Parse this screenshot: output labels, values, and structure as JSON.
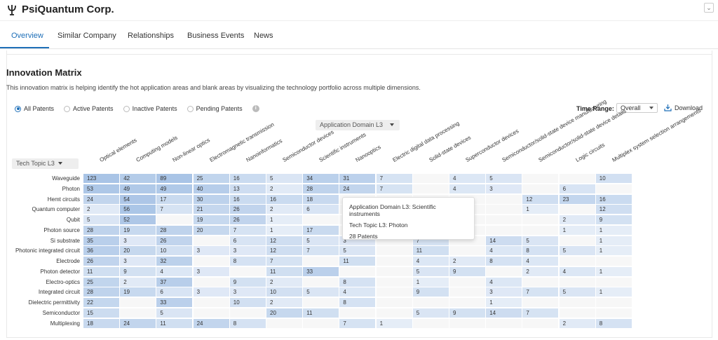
{
  "header": {
    "company": "PsiQuantum Corp."
  },
  "tabs": [
    "Overview",
    "Similar Company",
    "Relationships",
    "Business Events",
    "News"
  ],
  "section": {
    "title": "Innovation Matrix",
    "description": "This innovation matrix is helping identify the hot application areas and blank areas by visualizing the technology portfolio across multiple dimensions."
  },
  "filters": {
    "radios": [
      "All Patents",
      "Active Patents",
      "Inactive Patents",
      "Pending Patents"
    ],
    "selected": "All Patents",
    "time_range_label": "Time Range:",
    "time_range_value": "Overall",
    "download_label": "Download"
  },
  "matrix": {
    "x_axis_selector": "Application Domain L3",
    "y_axis_selector": "Tech Topic L3",
    "columns": [
      "Optical elements",
      "Computing models",
      "Non-linear optics",
      "Electromagnetic transmission",
      "Nanoinformatics",
      "Semiconductor devices",
      "Scientific instruments",
      "Nanooptics",
      "Electric digital data processing",
      "Solid-state devices",
      "Superconductor devices",
      "Semiconductor/solid-state device manufacturing",
      "Semiconductor/solid-state device details",
      "Logic circuits",
      "Multiplex system selection arrangements"
    ],
    "rows": [
      {
        "label": "Waveguide",
        "values": [
          123,
          42,
          89,
          25,
          16,
          5,
          34,
          31,
          7,
          null,
          4,
          5,
          null,
          null,
          10
        ]
      },
      {
        "label": "Photon",
        "values": [
          53,
          49,
          49,
          40,
          13,
          2,
          28,
          24,
          7,
          null,
          4,
          3,
          null,
          6,
          null
        ]
      },
      {
        "label": "Hemt circuits",
        "values": [
          24,
          54,
          17,
          30,
          16,
          16,
          18,
          null,
          null,
          null,
          null,
          null,
          12,
          23,
          16
        ]
      },
      {
        "label": "Quantum computer",
        "values": [
          2,
          56,
          7,
          21,
          26,
          2,
          6,
          null,
          null,
          null,
          null,
          null,
          1,
          null,
          12
        ]
      },
      {
        "label": "Qubit",
        "values": [
          5,
          52,
          null,
          19,
          26,
          1,
          null,
          null,
          null,
          null,
          null,
          null,
          null,
          2,
          9
        ]
      },
      {
        "label": "Photon source",
        "values": [
          28,
          19,
          28,
          20,
          7,
          1,
          17,
          null,
          null,
          null,
          null,
          null,
          null,
          1,
          1
        ]
      },
      {
        "label": "Si substrate",
        "values": [
          35,
          3,
          26,
          null,
          6,
          12,
          5,
          3,
          null,
          7,
          null,
          14,
          5,
          null,
          1
        ]
      },
      {
        "label": "Photonic integrated circuit",
        "values": [
          36,
          20,
          10,
          3,
          3,
          12,
          7,
          5,
          null,
          11,
          null,
          4,
          8,
          5,
          1
        ]
      },
      {
        "label": "Electrode",
        "values": [
          26,
          3,
          32,
          null,
          8,
          7,
          null,
          11,
          null,
          4,
          2,
          8,
          4,
          null,
          null
        ]
      },
      {
        "label": "Photon detector",
        "values": [
          11,
          9,
          4,
          3,
          null,
          11,
          33,
          null,
          null,
          5,
          9,
          null,
          2,
          4,
          1
        ]
      },
      {
        "label": "Electro-optics",
        "values": [
          25,
          2,
          37,
          null,
          9,
          2,
          null,
          8,
          null,
          1,
          null,
          4,
          null,
          null,
          null
        ]
      },
      {
        "label": "Integrated circuit",
        "values": [
          28,
          19,
          6,
          3,
          3,
          10,
          5,
          4,
          null,
          9,
          null,
          3,
          7,
          5,
          1
        ]
      },
      {
        "label": "Dielectric permittivity",
        "values": [
          22,
          null,
          33,
          null,
          10,
          2,
          null,
          8,
          null,
          null,
          null,
          1,
          null,
          null,
          null
        ]
      },
      {
        "label": "Semiconductor",
        "values": [
          15,
          null,
          5,
          null,
          null,
          20,
          11,
          null,
          null,
          5,
          9,
          14,
          7,
          null,
          null
        ]
      },
      {
        "label": "Multiplexing",
        "values": [
          18,
          24,
          11,
          24,
          8,
          null,
          null,
          7,
          1,
          null,
          null,
          null,
          null,
          2,
          8
        ]
      }
    ],
    "colors": {
      "low": "#eef3fa",
      "high": "#a9c4e6",
      "empty": "#f7f7f7"
    }
  },
  "tooltip": {
    "line1": "Application Domain L3: Scientific instruments",
    "line2": "Tech Topic L3: Photon",
    "line3": "28 Patents"
  }
}
